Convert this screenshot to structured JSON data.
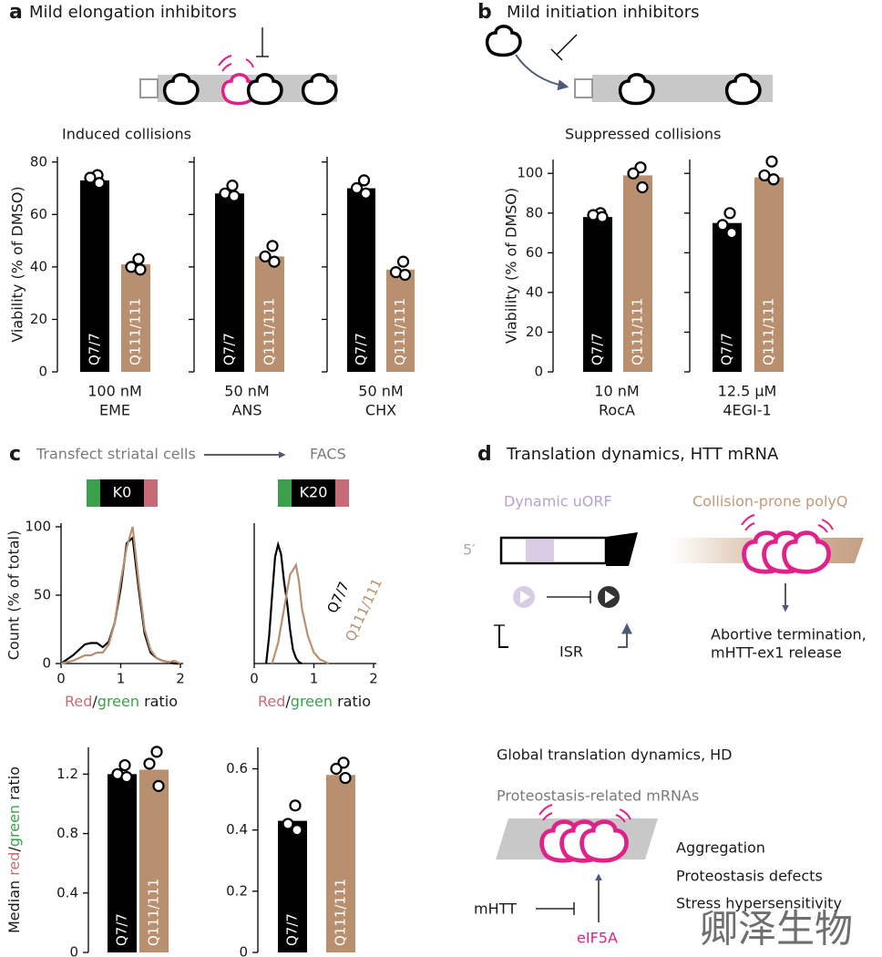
{
  "panel_a": {
    "letter": "a",
    "title": "Mild elongation inhibitors",
    "subtitle": "Induced collisions"
  },
  "panel_b": {
    "letter": "b",
    "title": "Mild initiation inhibitors",
    "subtitle": "Suppressed collisions"
  },
  "panel_c": {
    "letter": "c",
    "step1": "Transfect striatal cells",
    "step2": "FACS",
    "reporters": [
      "K0",
      "K20"
    ]
  },
  "panel_d": {
    "letter": "d",
    "title": "Translation dynamics, HTT mRNA",
    "uorf": "Dynamic uORF",
    "polyq": "Collision-prone polyQ",
    "five_prime": "5′",
    "isr": "ISR",
    "outcome": [
      "Abortive termination,",
      "mHTT-ex1 release"
    ],
    "global_title": "Global translation dynamics, HD",
    "mrnas": "Proteostasis-related mRNAs",
    "effects": [
      "Aggregation",
      "Proteostasis defects",
      "Stress hypersensitivity"
    ],
    "mhtt": "mHTT",
    "eif5a": "eIF5A"
  },
  "watermark": "卿泽生物",
  "chart_data": [
    {
      "type": "bar",
      "ylabel": "Viability (% of DMSO)",
      "ylim": [
        0,
        82
      ],
      "yticks": [
        0,
        20,
        40,
        60,
        80
      ],
      "categories": [
        "Q7/7",
        "Q111/111"
      ],
      "values": [
        73,
        41
      ],
      "colors": [
        "#000000",
        "#b8906f"
      ],
      "points": [
        [
          75,
          74,
          72
        ],
        [
          43,
          40,
          39
        ]
      ],
      "xlabel": [
        "100 nM",
        "EME"
      ]
    },
    {
      "type": "bar",
      "ylim": [
        0,
        82
      ],
      "categories": [
        "Q7/7",
        "Q111/111"
      ],
      "values": [
        68,
        44
      ],
      "colors": [
        "#000000",
        "#b8906f"
      ],
      "points": [
        [
          71,
          68,
          67
        ],
        [
          48,
          44,
          42
        ]
      ],
      "xlabel": [
        "50 nM",
        "ANS"
      ]
    },
    {
      "type": "bar",
      "ylim": [
        0,
        82
      ],
      "categories": [
        "Q7/7",
        "Q111/111"
      ],
      "values": [
        70,
        39
      ],
      "colors": [
        "#000000",
        "#b8906f"
      ],
      "points": [
        [
          73,
          70,
          68
        ],
        [
          42,
          38,
          37
        ]
      ],
      "xlabel": [
        "50 nM",
        "CHX"
      ]
    },
    {
      "type": "bar",
      "ylabel": "Viability (% of DMSO)",
      "ylim": [
        0,
        107
      ],
      "yticks": [
        0,
        20,
        40,
        60,
        80,
        100
      ],
      "categories": [
        "Q7/7",
        "Q111/111"
      ],
      "values": [
        78,
        99
      ],
      "colors": [
        "#000000",
        "#b8906f"
      ],
      "points": [
        [
          80,
          79,
          78
        ],
        [
          103,
          100,
          93
        ]
      ],
      "xlabel": [
        "10 nM",
        "RocA"
      ]
    },
    {
      "type": "bar",
      "ylim": [
        0,
        107
      ],
      "categories": [
        "Q7/7",
        "Q111/111"
      ],
      "values": [
        75,
        98
      ],
      "colors": [
        "#000000",
        "#b8906f"
      ],
      "points": [
        [
          80,
          74,
          70
        ],
        [
          106,
          99,
          97
        ]
      ],
      "xlabel": [
        "12.5 μM",
        "4EGI-1"
      ]
    },
    {
      "type": "line",
      "ylabel": "Count (% of total)",
      "xlabel": [
        "Red",
        "/",
        "green",
        " ratio"
      ],
      "xlim": [
        0,
        2
      ],
      "xticks": [
        0,
        1,
        2
      ],
      "ylim": [
        0,
        100
      ],
      "yticks": [
        0,
        50,
        100
      ],
      "series": [
        {
          "color": "#000000",
          "x": [
            0,
            0.1,
            0.2,
            0.3,
            0.4,
            0.5,
            0.6,
            0.7,
            0.8,
            0.9,
            1.0,
            1.1,
            1.2,
            1.3,
            1.4,
            1.5,
            1.6,
            1.7,
            1.8,
            1.9,
            2.0
          ],
          "values": [
            0,
            3,
            6,
            10,
            14,
            15,
            15,
            12,
            16,
            30,
            55,
            88,
            92,
            55,
            22,
            8,
            4,
            2,
            1,
            0,
            0
          ]
        },
        {
          "color": "#b8906f",
          "x": [
            0,
            0.1,
            0.2,
            0.3,
            0.4,
            0.5,
            0.6,
            0.7,
            0.8,
            0.9,
            1.0,
            1.1,
            1.2,
            1.3,
            1.4,
            1.5,
            1.6,
            1.7,
            1.8,
            1.9,
            2.0
          ],
          "values": [
            0,
            1,
            2,
            4,
            6,
            6,
            8,
            8,
            14,
            30,
            60,
            85,
            100,
            60,
            25,
            10,
            4,
            2,
            1,
            2,
            0
          ]
        }
      ]
    },
    {
      "type": "line",
      "xlabel": [
        "Red",
        "/",
        "green",
        " ratio"
      ],
      "xlim": [
        0,
        2
      ],
      "xticks": [
        0,
        1,
        2
      ],
      "ylim": [
        0,
        100
      ],
      "series": [
        {
          "name": "Q7/7",
          "color": "#000000",
          "x": [
            0.2,
            0.25,
            0.3,
            0.35,
            0.4,
            0.45,
            0.5,
            0.55,
            0.6,
            0.65,
            0.7,
            0.75,
            0.8
          ],
          "values": [
            0,
            20,
            50,
            78,
            87,
            80,
            60,
            45,
            25,
            10,
            4,
            1,
            0
          ]
        },
        {
          "name": "Q111/111",
          "color": "#b8906f",
          "x": [
            0.3,
            0.4,
            0.5,
            0.6,
            0.7,
            0.75,
            0.8,
            0.9,
            1.0,
            1.1,
            1.2,
            1.25
          ],
          "values": [
            0,
            15,
            40,
            65,
            72,
            60,
            40,
            20,
            8,
            3,
            1,
            0
          ]
        }
      ]
    },
    {
      "type": "bar",
      "ylabel": [
        "Median ",
        "red",
        "/",
        "green",
        " ratio"
      ],
      "ylim": [
        0,
        1.38
      ],
      "yticks": [
        0,
        0.4,
        0.8,
        1.2
      ],
      "categories": [
        "Q7/7",
        "Q111/111"
      ],
      "values": [
        1.2,
        1.23
      ],
      "colors": [
        "#000000",
        "#b8906f"
      ],
      "points": [
        [
          1.26,
          1.2,
          1.18
        ],
        [
          1.35,
          1.27,
          1.12
        ]
      ]
    },
    {
      "type": "bar",
      "ylim": [
        0,
        0.67
      ],
      "yticks": [
        0,
        0.2,
        0.4,
        0.6
      ],
      "categories": [
        "Q7/7",
        "Q111/111"
      ],
      "values": [
        0.43,
        0.58
      ],
      "colors": [
        "#000000",
        "#b8906f"
      ],
      "points": [
        [
          0.48,
          0.42,
          0.4
        ],
        [
          0.62,
          0.6,
          0.57
        ]
      ]
    }
  ]
}
